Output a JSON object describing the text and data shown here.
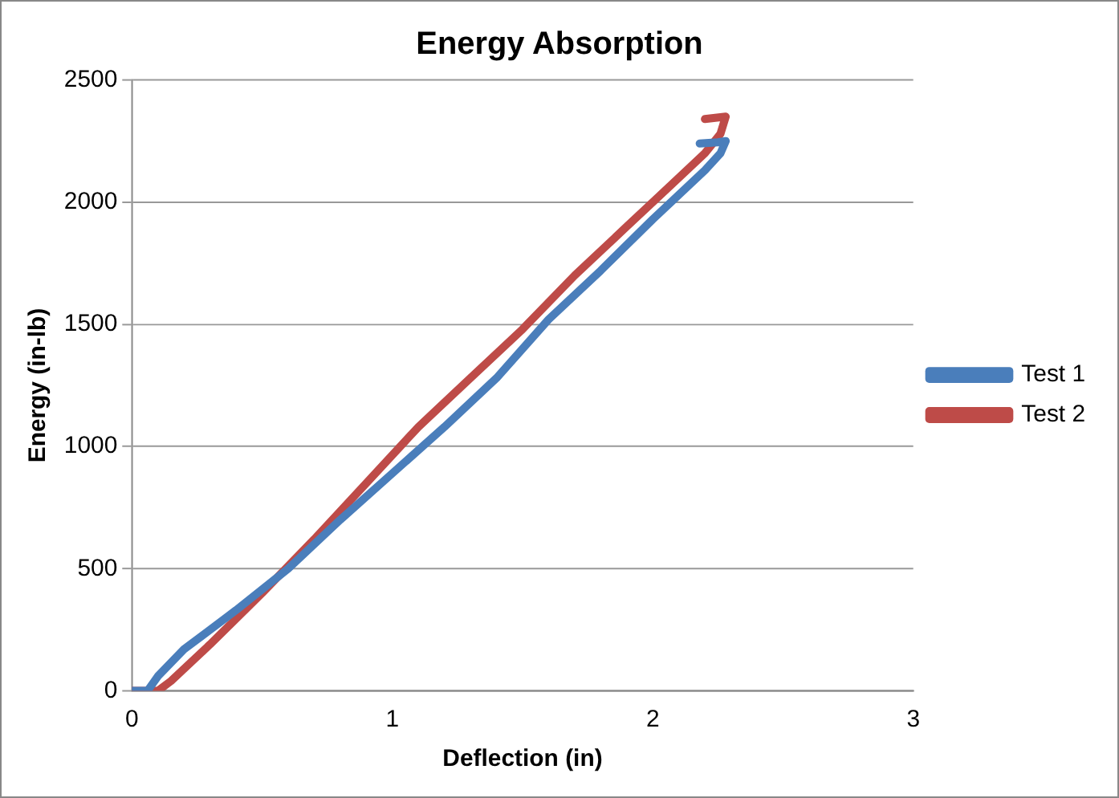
{
  "chart_data": {
    "type": "line",
    "title": "Energy Absorption",
    "xlabel": "Deflection (in)",
    "ylabel": "Energy (in-lb)",
    "xlim": [
      0,
      3
    ],
    "xticks": [
      0,
      1,
      2,
      3
    ],
    "ylim": [
      0,
      2500
    ],
    "yticks": [
      0,
      500,
      1000,
      1500,
      2000,
      2500
    ],
    "grid": "y",
    "legend": "right",
    "marker": "none",
    "line_style": "solid",
    "series": [
      {
        "name": "Test 1",
        "color": "#4a7ebb",
        "x": [
          0,
          0.06,
          0.1,
          0.2,
          0.4,
          0.6,
          0.8,
          1.0,
          1.2,
          1.4,
          1.6,
          1.8,
          2.0,
          2.1,
          2.2,
          2.26,
          2.28,
          2.25,
          2.18
        ],
        "values": [
          0,
          0,
          60,
          170,
          330,
          500,
          700,
          890,
          1080,
          1280,
          1520,
          1720,
          1930,
          2030,
          2130,
          2200,
          2250,
          2245,
          2240
        ]
      },
      {
        "name": "Test 2",
        "color": "#be4b48",
        "x": [
          0,
          0.1,
          0.15,
          0.3,
          0.5,
          0.7,
          0.9,
          1.1,
          1.3,
          1.5,
          1.7,
          1.9,
          2.1,
          2.2,
          2.26,
          2.28,
          2.24,
          2.2
        ],
        "values": [
          0,
          0,
          40,
          190,
          400,
          620,
          850,
          1080,
          1280,
          1480,
          1700,
          1900,
          2100,
          2200,
          2280,
          2350,
          2345,
          2340
        ]
      }
    ]
  }
}
